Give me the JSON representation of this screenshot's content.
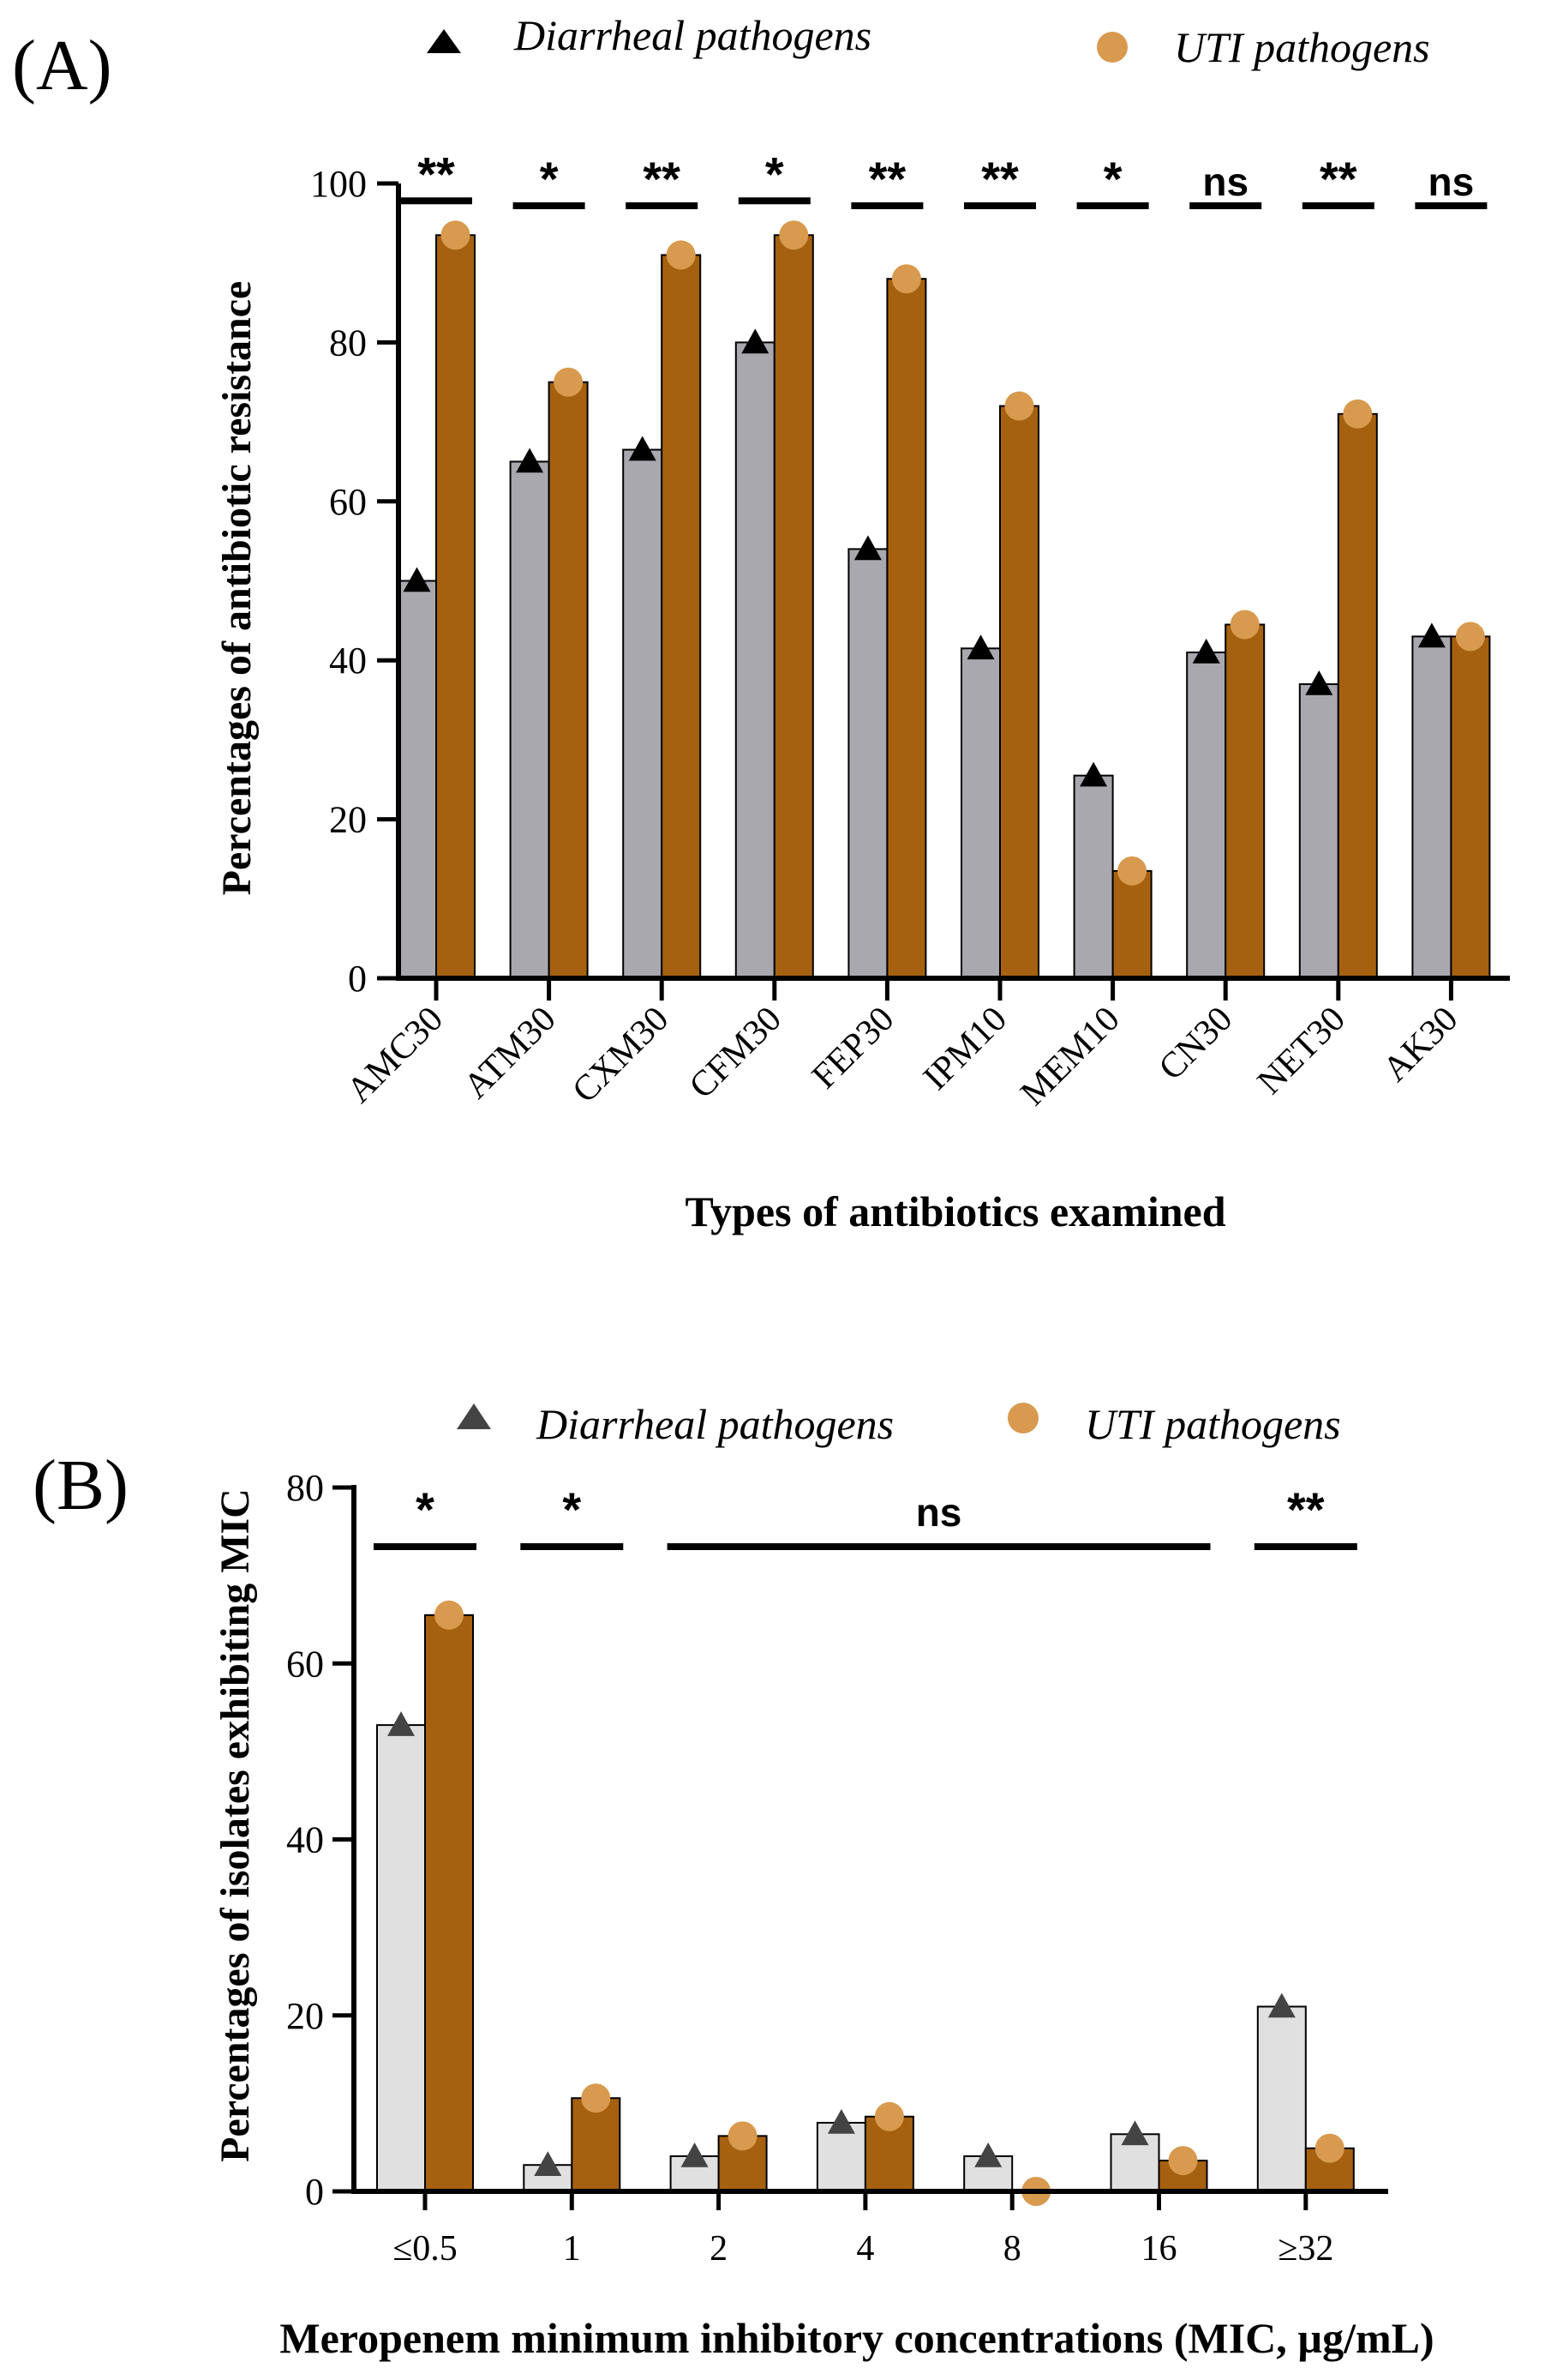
{
  "colors": {
    "grayA": "#a9a8ae",
    "grayB": "#e0e0e0",
    "orangeBar": "#a5610f",
    "orangeMarker": "#d89a4e",
    "black": "#000000",
    "triangleB": "#444444"
  },
  "chart_data": [
    {
      "type": "bar",
      "panel_label": "(A)",
      "title": "",
      "xlabel": "Types of antibiotics examined",
      "ylabel": "Percentages of antibiotic resistance",
      "ylim": [
        0,
        100
      ],
      "yticks": [
        "0",
        "20",
        "40",
        "60",
        "80",
        "100"
      ],
      "categories": [
        "AMC30",
        "ATM30",
        "CXM30",
        "CFM30",
        "FEP30",
        "IPM10",
        "MEM10",
        "CN30",
        "NET30",
        "AK30"
      ],
      "series": [
        {
          "name": "Diarrheal pathogens",
          "values": [
            50,
            65,
            66.5,
            80,
            54,
            41.5,
            25.5,
            41,
            37,
            43
          ]
        },
        {
          "name": "UTI pathogens",
          "values": [
            93.5,
            75,
            91,
            93.5,
            88,
            72,
            13.5,
            44.5,
            71,
            43
          ]
        }
      ],
      "significance": [
        "**",
        "*",
        "**",
        "*",
        "**",
        "**",
        "*",
        "ns",
        "**",
        "ns"
      ],
      "legend": [
        "Diarrheal pathogens",
        "UTI pathogens"
      ],
      "legend_position": "top"
    },
    {
      "type": "bar",
      "panel_label": "(B)",
      "title": "",
      "xlabel": "Meropenem minimum inhibitory concentrations (MIC, µg/mL)",
      "ylabel": "Percentages of isolates exhibiting MIC",
      "ylim": [
        0,
        80
      ],
      "yticks": [
        "0",
        "20",
        "40",
        "60",
        "80"
      ],
      "categories": [
        "≤0.5",
        "1",
        "2",
        "4",
        "8",
        "16",
        "≥32"
      ],
      "series": [
        {
          "name": "Diarrheal pathogens",
          "values": [
            53,
            3,
            4,
            7.8,
            4,
            6.5,
            21
          ]
        },
        {
          "name": "UTI pathogens",
          "values": [
            65.5,
            10.6,
            6.3,
            8.5,
            0,
            3.5,
            4.9
          ]
        }
      ],
      "significance_groups": [
        {
          "label": "*",
          "from": "≤0.5",
          "to": "≤0.5"
        },
        {
          "label": "*",
          "from": "1",
          "to": "1"
        },
        {
          "label": "ns",
          "from": "2",
          "to": "16"
        },
        {
          "label": "**",
          "from": "≥32",
          "to": "≥32"
        }
      ],
      "legend": [
        "Diarrheal pathogens",
        "UTI pathogens"
      ],
      "legend_position": "top"
    }
  ]
}
